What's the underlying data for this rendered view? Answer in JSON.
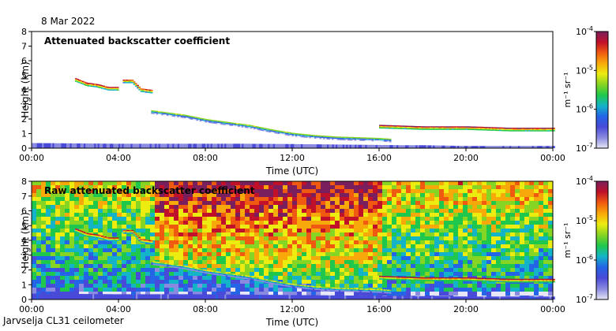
{
  "date": "8 Mar 2022",
  "footer": "Jarvselja CL31 ceilometer",
  "chart_data": [
    {
      "type": "heatmap",
      "title": "Attenuated backscatter coefficient",
      "xlabel": "Time (UTC)",
      "ylabel": "Height (km)",
      "xlim": [
        0,
        24
      ],
      "ylim": [
        0,
        8
      ],
      "x_ticks": [
        "00:00",
        "04:00",
        "08:00",
        "12:00",
        "16:00",
        "20:00",
        "00:00"
      ],
      "y_ticks": [
        "0",
        "1",
        "2",
        "3",
        "4",
        "5",
        "6",
        "7",
        "8"
      ],
      "colorbar": {
        "units": "m⁻¹ sr⁻¹",
        "ticks": [
          {
            "base": "10",
            "exp": "-4"
          },
          {
            "base": "10",
            "exp": "-5"
          },
          {
            "base": "10",
            "exp": "-6"
          },
          {
            "base": "10",
            "exp": "-7"
          }
        ],
        "colors": [
          "#7a1f5e",
          "#c0102a",
          "#f05a10",
          "#f8a90a",
          "#ecec10",
          "#86d424",
          "#1fc84c",
          "#14b4c8",
          "#2464e6",
          "#4a4ad8",
          "#8a8ae0",
          "#e6e6f8"
        ]
      },
      "features": [
        {
          "name": "boundary-layer",
          "t": [
            0,
            4,
            8,
            10,
            12,
            14,
            16,
            17,
            18,
            20,
            24
          ],
          "h": [
            0.35,
            0.3,
            0.3,
            0.3,
            0.28,
            0.25,
            0.22,
            0.2,
            0.2,
            0.15,
            0.15
          ],
          "level": 0.12
        },
        {
          "name": "elevated-layer-a",
          "t": [
            2,
            2.5,
            3,
            3.5,
            4
          ],
          "h": [
            4.6,
            4.3,
            4.2,
            4.0,
            4.0
          ],
          "level": 0.9
        },
        {
          "name": "elevated-layer-b",
          "t": [
            4.2,
            4.6,
            5,
            5.5
          ],
          "h": [
            4.5,
            4.5,
            3.9,
            3.8
          ],
          "level": 0.85
        },
        {
          "name": "descending-layer",
          "t": [
            5.5,
            7,
            8,
            10,
            11,
            12,
            13,
            14,
            15,
            16,
            16.5
          ],
          "h": [
            2.4,
            2.1,
            1.8,
            1.4,
            1.1,
            0.85,
            0.7,
            0.6,
            0.55,
            0.5,
            0.45
          ],
          "level": 0.55
        },
        {
          "name": "upper-cloud-deck",
          "t": [
            16,
            17,
            18,
            19,
            20,
            21,
            22,
            23,
            24
          ],
          "h": [
            1.4,
            1.35,
            1.3,
            1.3,
            1.3,
            1.25,
            1.2,
            1.2,
            1.2
          ],
          "level": 0.95
        }
      ]
    },
    {
      "type": "heatmap",
      "title": "Raw attenuated backscatter coefficient",
      "xlabel": "Time (UTC)",
      "ylabel": "Height (km)",
      "xlim": [
        0,
        24
      ],
      "ylim": [
        0,
        8
      ],
      "x_ticks": [
        "00:00",
        "04:00",
        "08:00",
        "12:00",
        "16:00",
        "20:00",
        "00:00"
      ],
      "y_ticks": [
        "0",
        "1",
        "2",
        "3",
        "4",
        "5",
        "6",
        "7",
        "8"
      ],
      "colorbar": {
        "units": "m⁻¹ sr⁻¹",
        "ticks": [
          {
            "base": "10",
            "exp": "-4"
          },
          {
            "base": "10",
            "exp": "-5"
          },
          {
            "base": "10",
            "exp": "-6"
          },
          {
            "base": "10",
            "exp": "-7"
          }
        ],
        "colors": [
          "#7a1f5e",
          "#c0102a",
          "#f05a10",
          "#f8a90a",
          "#ecec10",
          "#86d424",
          "#1fc84c",
          "#14b4c8",
          "#2464e6",
          "#4a4ad8",
          "#8a8ae0",
          "#e6e6f8"
        ]
      },
      "features": [
        {
          "name": "boundary-layer",
          "t": [
            0,
            4,
            8,
            12,
            16,
            20,
            24
          ],
          "h": [
            0.4,
            0.35,
            0.35,
            0.3,
            0.25,
            0.2,
            0.2
          ],
          "level": 0.18
        },
        {
          "name": "elevated-layer-a",
          "t": [
            2,
            2.5,
            3,
            3.5,
            4
          ],
          "h": [
            4.6,
            4.3,
            4.2,
            4.0,
            4.0
          ],
          "level": 0.9
        },
        {
          "name": "elevated-layer-b",
          "t": [
            4.2,
            4.6,
            5,
            5.5
          ],
          "h": [
            4.5,
            4.5,
            3.9,
            3.8
          ],
          "level": 0.85
        },
        {
          "name": "descending-layer",
          "t": [
            5.5,
            7,
            8,
            10,
            11,
            12,
            13,
            14,
            15,
            16,
            16.5
          ],
          "h": [
            2.4,
            2.1,
            1.8,
            1.4,
            1.1,
            0.85,
            0.7,
            0.6,
            0.55,
            0.5,
            0.45
          ],
          "level": 0.6
        },
        {
          "name": "upper-cloud-deck",
          "t": [
            16,
            17,
            18,
            19,
            20,
            21,
            22,
            23,
            24
          ],
          "h": [
            1.4,
            1.35,
            1.3,
            1.3,
            1.3,
            1.25,
            1.2,
            1.2,
            1.2
          ],
          "level": 0.95
        }
      ]
    }
  ]
}
